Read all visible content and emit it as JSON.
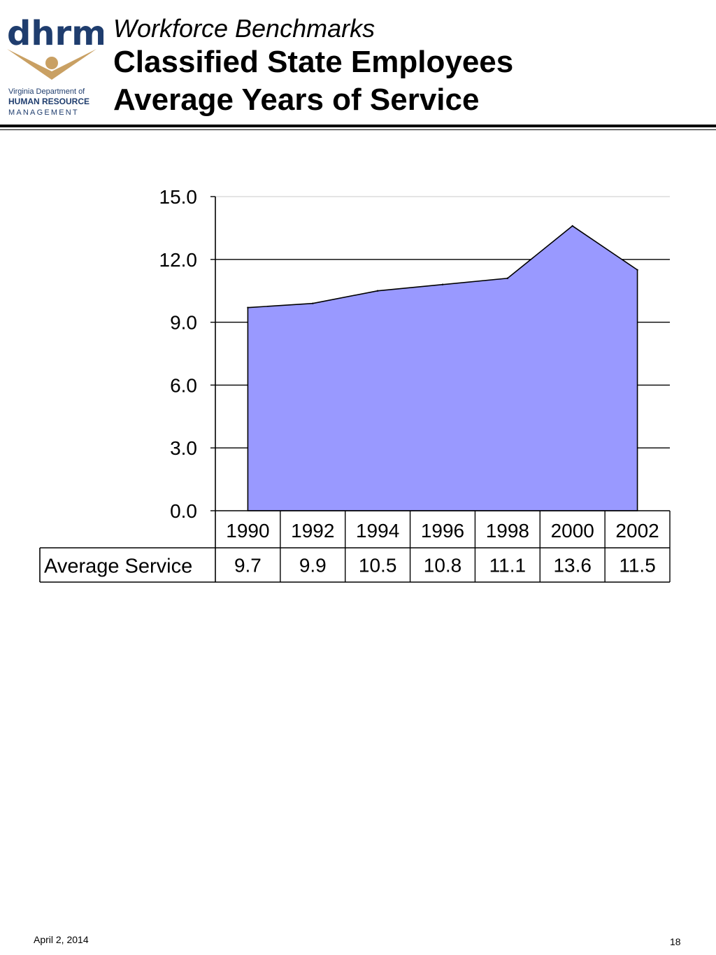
{
  "header": {
    "logo_word": "dhrm",
    "logo_line1": "Virginia Department of",
    "logo_line2": "HUMAN RESOURCE",
    "logo_line3": "MANAGEMENT",
    "subtitle": "Workforce Benchmarks",
    "title_line1": "Classified State Employees",
    "title_line2": "Average Years of Service"
  },
  "footer": {
    "date": "April 2, 2014",
    "page": "18"
  },
  "colors": {
    "area_fill": "#9999ff",
    "logo_blue": "#1f3d6e",
    "logo_gold": "#c9a063"
  },
  "chart_data": {
    "type": "area",
    "title": "",
    "xlabel": "",
    "ylabel": "",
    "categories": [
      "1990",
      "1992",
      "1994",
      "1996",
      "1998",
      "2000",
      "2002"
    ],
    "series": [
      {
        "name": "Average Service",
        "values": [
          9.7,
          9.9,
          10.5,
          10.8,
          11.1,
          13.6,
          11.5
        ]
      }
    ],
    "table_values": [
      "9.7",
      "9.9",
      "10.5",
      "10.8",
      "11.1",
      "13.6",
      "11.5"
    ],
    "ylim": [
      0,
      15
    ],
    "yticks": [
      "0.0",
      "3.0",
      "6.0",
      "9.0",
      "12.0",
      "15.0"
    ],
    "ytick_values": [
      0,
      3,
      6,
      9,
      12,
      15
    ],
    "grid": true,
    "legend": "data-table-below"
  }
}
